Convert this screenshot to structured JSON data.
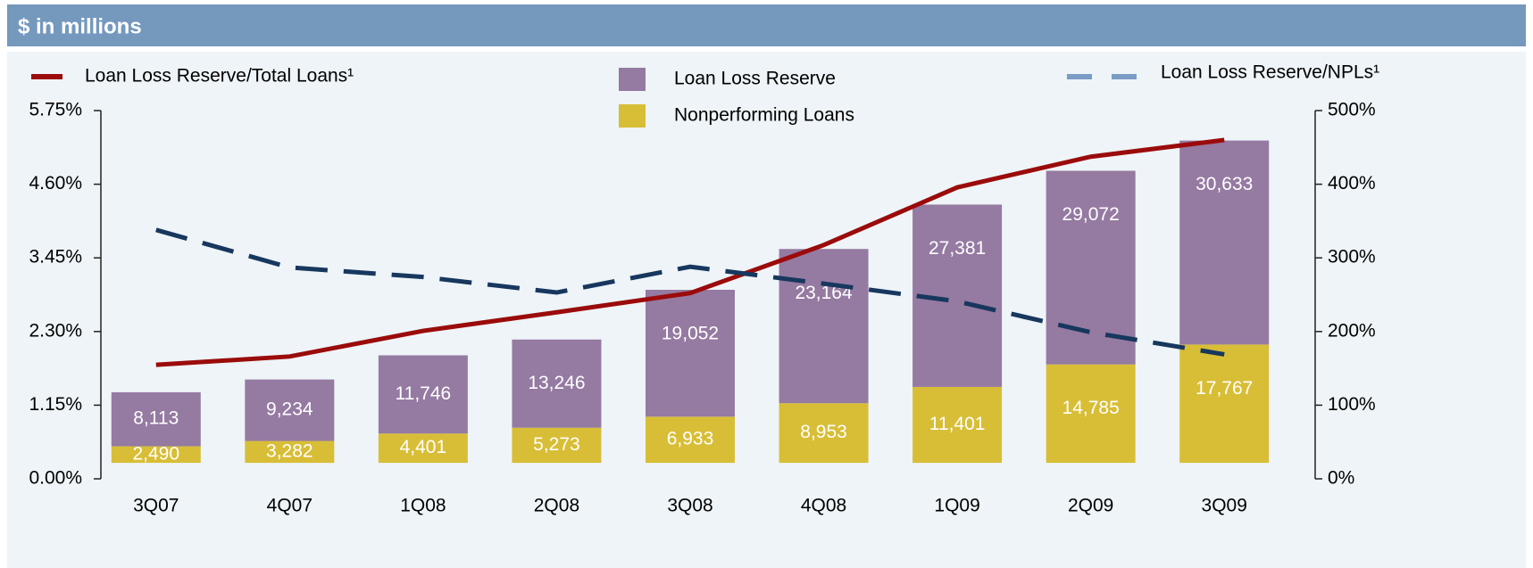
{
  "chart_data": {
    "type": "bar_line",
    "title": "$ in millions",
    "categories": [
      "3Q07",
      "4Q07",
      "1Q08",
      "2Q08",
      "3Q08",
      "4Q08",
      "1Q09",
      "2Q09",
      "3Q09"
    ],
    "series": [
      {
        "name": "Nonperforming Loans",
        "color": "#d8be36",
        "kind": "bar",
        "axis": "y3",
        "values": [
          2490,
          3282,
          4401,
          5273,
          6933,
          8953,
          11401,
          14785,
          17767
        ],
        "value_labels": [
          "2,490",
          "3,282",
          "4,401",
          "5,273",
          "6,933",
          "8,953",
          "11,401",
          "14,785",
          "17,767"
        ]
      },
      {
        "name": "Loan Loss Reserve",
        "color": "#957aa2",
        "kind": "bar",
        "axis": "y3",
        "values": [
          8113,
          9234,
          11746,
          13246,
          19052,
          23164,
          27381,
          29072,
          30633
        ],
        "value_labels": [
          "8,113",
          "9,234",
          "11,746",
          "13,246",
          "19,052",
          "23,164",
          "27,381",
          "29,072",
          "30,633"
        ]
      },
      {
        "name": "Loan Loss Reserve/Total Loans¹",
        "color": "#9b0b0b",
        "kind": "line",
        "axis": "y",
        "values": [
          1.78,
          1.91,
          2.31,
          2.6,
          2.9,
          3.65,
          4.55,
          5.03,
          5.29
        ]
      },
      {
        "name": "Loan Loss Reserve/NPLs¹",
        "color": "#17375e",
        "kind": "dashed",
        "axis": "y2",
        "values": [
          338,
          287,
          274,
          253,
          288,
          265,
          241,
          199,
          169
        ]
      }
    ],
    "ylim": [
      0,
      5.75
    ],
    "yticks": [
      {
        "value": 0,
        "label": "0.00%"
      },
      {
        "value": 1.15,
        "label": "1.15%"
      },
      {
        "value": 2.3,
        "label": "2.30%"
      },
      {
        "value": 3.45,
        "label": "3.45%"
      },
      {
        "value": 4.6,
        "label": "4.60%"
      },
      {
        "value": 5.75,
        "label": "5.75%"
      }
    ],
    "y2lim": [
      0,
      500
    ],
    "y2ticks": [
      {
        "value": 0,
        "label": "0%"
      },
      {
        "value": 100,
        "label": "100%"
      },
      {
        "value": 200,
        "label": "200%"
      },
      {
        "value": 300,
        "label": "300%"
      },
      {
        "value": 400,
        "label": "400%"
      },
      {
        "value": 500,
        "label": "500%"
      }
    ],
    "y3lim": [
      -2400,
      52900
    ]
  }
}
